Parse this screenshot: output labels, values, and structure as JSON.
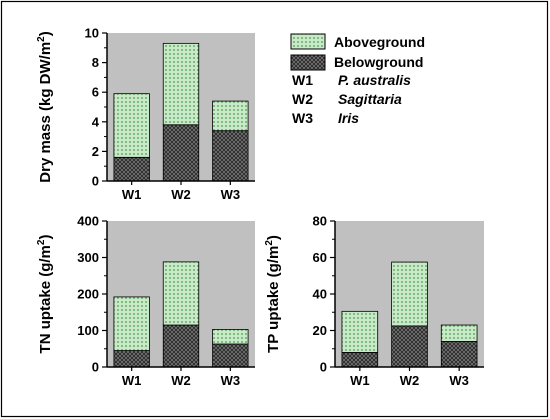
{
  "legend": {
    "aboveground": "Aboveground",
    "belowground": "Belowground",
    "wetlands": [
      {
        "code": "W1",
        "species": "P. australis"
      },
      {
        "code": "W2",
        "species": "Sagittaria"
      },
      {
        "code": "W3",
        "species": "Iris"
      }
    ]
  },
  "colors": {
    "plot_background": "#c0c0c0",
    "aboveground_fill": "#c9eac9",
    "aboveground_dots": "#4f9a4f",
    "belowground_fill": "#2b2b2b"
  },
  "chart_data": [
    {
      "id": "dry-mass",
      "type": "bar",
      "stacked": true,
      "ylabel_main": "Dry mass (kg DW/m",
      "ylabel_sup": "2",
      "ylabel_tail": ")",
      "categories": [
        "W1",
        "W2",
        "W3"
      ],
      "ylim": [
        0,
        10
      ],
      "yticks": [
        0,
        2,
        4,
        6,
        8,
        10
      ],
      "series": [
        {
          "name": "Belowground",
          "values": [
            1.6,
            3.8,
            3.4
          ]
        },
        {
          "name": "Aboveground",
          "values": [
            4.3,
            5.5,
            2.0
          ]
        }
      ]
    },
    {
      "id": "tn-uptake",
      "type": "bar",
      "stacked": true,
      "ylabel_main": "TN uptake (g/m",
      "ylabel_sup": "2",
      "ylabel_tail": ")",
      "categories": [
        "W1",
        "W2",
        "W3"
      ],
      "ylim": [
        0,
        400
      ],
      "yticks": [
        0,
        100,
        200,
        300,
        400
      ],
      "series": [
        {
          "name": "Belowground",
          "values": [
            45,
            115,
            63
          ]
        },
        {
          "name": "Aboveground",
          "values": [
            147,
            173,
            40
          ]
        }
      ]
    },
    {
      "id": "tp-uptake",
      "type": "bar",
      "stacked": true,
      "ylabel_main": "TP uptake (g/m",
      "ylabel_sup": "2",
      "ylabel_tail": ")",
      "categories": [
        "W1",
        "W2",
        "W3"
      ],
      "ylim": [
        0,
        80
      ],
      "yticks": [
        0,
        20,
        40,
        60,
        80
      ],
      "series": [
        {
          "name": "Belowground",
          "values": [
            8,
            22.5,
            14
          ]
        },
        {
          "name": "Aboveground",
          "values": [
            22.5,
            35,
            9
          ]
        }
      ]
    }
  ]
}
